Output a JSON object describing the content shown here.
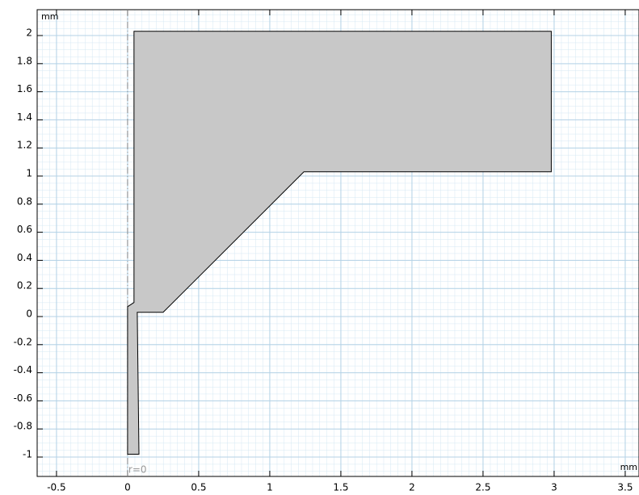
{
  "chart_data": {
    "type": "polygon",
    "x": [
      0.045,
      2.98,
      2.98,
      1.24,
      0.25,
      0.068,
      0.08,
      0,
      0,
      0.045
    ],
    "y": [
      2.03,
      2.03,
      1.03,
      1.03,
      0.03,
      0.03,
      -0.98,
      -0.98,
      0.07,
      0.1
    ],
    "fill": "#c8c8c8",
    "stroke": "#000000",
    "xlim": [
      -0.636,
      3.597
    ],
    "ylim": [
      -1.138,
      2.184
    ],
    "xticks": [
      -0.5,
      0,
      0.5,
      1,
      1.5,
      2,
      2.5,
      3,
      3.5
    ],
    "yticks": [
      -1,
      -0.8,
      -0.6,
      -0.4,
      -0.2,
      0,
      0.2,
      0.4,
      0.6,
      0.8,
      1,
      1.2,
      1.4,
      1.6,
      1.8,
      2
    ],
    "x_unit": "mm",
    "y_unit": "mm",
    "annotation": {
      "text": "r=0",
      "x": 0
    },
    "grid": true
  }
}
